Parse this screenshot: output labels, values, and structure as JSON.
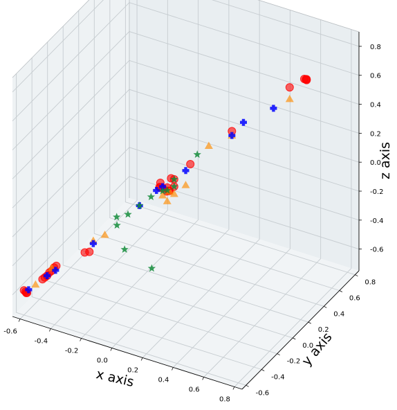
{
  "chart_data": {
    "type": "scatter",
    "projection": "3d",
    "xlabel": "x axis",
    "ylabel": "y axis",
    "zlabel": "z axis",
    "xlim": [
      -0.65,
      0.85
    ],
    "ylim": [
      -0.65,
      0.85
    ],
    "zlim": [
      -0.75,
      0.9
    ],
    "x_ticks": [
      "-0.6",
      "-0.4",
      "-0.2",
      "0.0",
      "0.2",
      "0.4",
      "0.6",
      "0.8"
    ],
    "y_ticks": [
      "-0.6",
      "-0.4",
      "-0.2",
      "0.0",
      "0.2",
      "0.4",
      "0.6",
      "0.8"
    ],
    "z_ticks": [
      "-0.6",
      "-0.4",
      "-0.2",
      "0.0",
      "0.2",
      "0.4",
      "0.6",
      "0.8"
    ],
    "grid": true,
    "pane_color": "#eef2f4",
    "series": [
      {
        "marker": "circle",
        "color": "#ff0000",
        "points": [
          [
            -0.52,
            -0.52,
            -0.52
          ],
          [
            -0.51,
            -0.51,
            -0.51
          ],
          [
            -0.5,
            -0.5,
            -0.5
          ],
          [
            -0.49,
            -0.49,
            -0.48
          ],
          [
            -0.48,
            -0.48,
            -0.47
          ],
          [
            -0.47,
            -0.47,
            -0.45
          ],
          [
            -0.46,
            -0.46,
            -0.44
          ],
          [
            0.62,
            0.62,
            0.62
          ],
          [
            0.63,
            0.61,
            0.63
          ],
          [
            0.62,
            0.63,
            0.61
          ],
          [
            0.61,
            0.62,
            0.62
          ],
          [
            0.55,
            0.55,
            0.58
          ],
          [
            0.3,
            0.3,
            0.33
          ],
          [
            0.12,
            0.12,
            0.14
          ],
          [
            0.02,
            0.02,
            0.0
          ],
          [
            0.03,
            0.05,
            0.05
          ],
          [
            0.0,
            0.0,
            0.0
          ],
          [
            -0.02,
            0.0,
            0.0
          ],
          [
            0.0,
            -0.03,
            0.02
          ],
          [
            0.03,
            0.02,
            -0.02
          ],
          [
            0.02,
            0.05,
            -0.04
          ],
          [
            -0.03,
            0.03,
            0.01
          ],
          [
            0.05,
            0.05,
            0.0
          ],
          [
            0.0,
            0.05,
            -0.05
          ],
          [
            0.05,
            0.05,
            0.05
          ],
          [
            -0.3,
            -0.35,
            -0.35
          ],
          [
            -0.32,
            -0.37,
            -0.35
          ],
          [
            -0.6,
            -0.6,
            -0.58
          ],
          [
            -0.59,
            -0.59,
            -0.6
          ],
          [
            -0.6,
            -0.58,
            -0.6
          ],
          [
            -0.58,
            -0.6,
            -0.59
          ]
        ]
      },
      {
        "marker": "triangle",
        "color": "#ff8c00",
        "points": [
          [
            0.55,
            0.55,
            0.5
          ],
          [
            0.2,
            0.2,
            0.25
          ],
          [
            0.1,
            0.1,
            0.0
          ],
          [
            0.0,
            0.0,
            -0.05
          ],
          [
            0.03,
            0.0,
            -0.08
          ],
          [
            0.05,
            0.05,
            -0.05
          ],
          [
            0.03,
            0.03,
            -0.03
          ],
          [
            -0.25,
            -0.25,
            -0.27
          ],
          [
            -0.3,
            -0.3,
            -0.3
          ],
          [
            -0.55,
            -0.55,
            -0.55
          ],
          [
            0.3,
            0.3,
            0.3
          ],
          [
            -0.48,
            -0.48,
            -0.45
          ]
        ]
      },
      {
        "marker": "plus",
        "color": "#0000ff",
        "points": [
          [
            0.48,
            0.48,
            0.45
          ],
          [
            0.35,
            0.35,
            0.38
          ],
          [
            0.3,
            0.3,
            0.3
          ],
          [
            0.1,
            0.1,
            0.1
          ],
          [
            -0.04,
            0.0,
            -0.03
          ],
          [
            -0.1,
            -0.1,
            -0.1
          ],
          [
            -0.3,
            -0.3,
            -0.32
          ],
          [
            -0.5,
            -0.5,
            -0.5
          ],
          [
            -0.58,
            -0.58,
            -0.58
          ],
          [
            -0.47,
            -0.45,
            -0.48
          ],
          [
            0.0,
            0.0,
            0.01
          ]
        ]
      },
      {
        "marker": "star",
        "color": "#138b3a",
        "points": [
          [
            0.15,
            0.15,
            0.2
          ],
          [
            0.05,
            0.05,
            0.05
          ],
          [
            0.0,
            0.0,
            -0.02
          ],
          [
            0.05,
            0.05,
            0.0
          ],
          [
            0.02,
            0.02,
            -0.02
          ],
          [
            -0.1,
            -0.1,
            -0.1
          ],
          [
            -0.15,
            -0.15,
            -0.15
          ],
          [
            -0.05,
            -0.05,
            -0.05
          ],
          [
            -0.4,
            0.2,
            -0.5
          ],
          [
            -0.35,
            0.2,
            -0.65
          ],
          [
            -0.3,
            0.45,
            -0.9
          ],
          [
            -0.3,
            0.0,
            -0.3
          ]
        ]
      }
    ]
  }
}
